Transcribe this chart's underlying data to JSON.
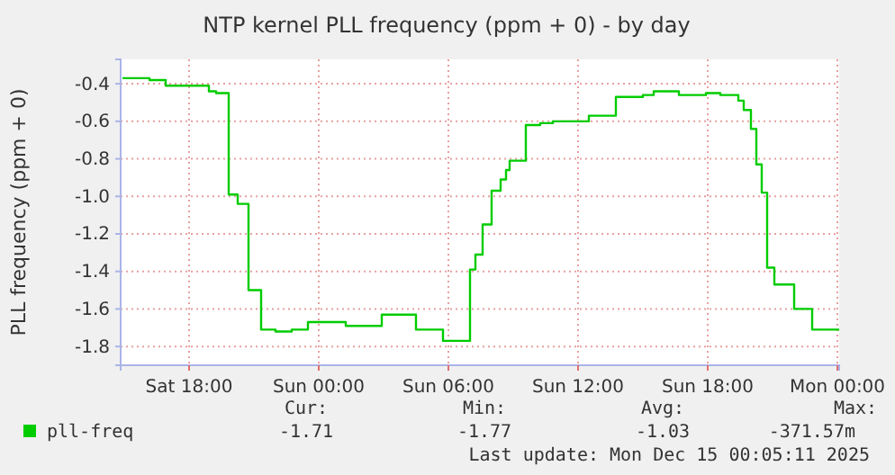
{
  "chart_data": {
    "type": "step",
    "title": "NTP kernel PLL frequency (ppm + 0) - by day",
    "ylabel": "PLL frequency (ppm + 0)",
    "x": [
      "2025-12-13T14:55",
      "2025-12-13T16:10",
      "2025-12-13T16:55",
      "2025-12-13T18:55",
      "2025-12-13T19:15",
      "2025-12-13T19:50",
      "2025-12-13T20:15",
      "2025-12-13T20:45",
      "2025-12-13T21:20",
      "2025-12-13T22:00",
      "2025-12-13T22:45",
      "2025-12-13T23:30",
      "2025-12-14T01:15",
      "2025-12-14T02:55",
      "2025-12-14T04:30",
      "2025-12-14T05:45",
      "2025-12-14T07:00",
      "2025-12-14T07:15",
      "2025-12-14T07:35",
      "2025-12-14T08:00",
      "2025-12-14T08:25",
      "2025-12-14T08:40",
      "2025-12-14T08:50",
      "2025-12-14T09:35",
      "2025-12-14T10:15",
      "2025-12-14T10:50",
      "2025-12-14T12:30",
      "2025-12-14T13:45",
      "2025-12-14T15:00",
      "2025-12-14T15:30",
      "2025-12-14T16:40",
      "2025-12-14T17:55",
      "2025-12-14T18:35",
      "2025-12-14T19:25",
      "2025-12-14T19:40",
      "2025-12-14T20:00",
      "2025-12-14T20:15",
      "2025-12-14T20:30",
      "2025-12-14T20:45",
      "2025-12-14T21:05",
      "2025-12-14T22:00",
      "2025-12-14T22:50",
      "2025-12-15T00:05"
    ],
    "series": [
      {
        "name": "pll-freq",
        "color": "#00cc00",
        "values": [
          -0.37,
          -0.38,
          -0.41,
          -0.44,
          -0.45,
          -0.99,
          -1.04,
          -1.5,
          -1.71,
          -1.72,
          -1.71,
          -1.67,
          -1.69,
          -1.63,
          -1.71,
          -1.77,
          -1.39,
          -1.31,
          -1.15,
          -0.97,
          -0.91,
          -0.86,
          -0.81,
          -0.62,
          -0.61,
          -0.6,
          -0.57,
          -0.47,
          -0.46,
          -0.44,
          -0.46,
          -0.45,
          -0.46,
          -0.49,
          -0.54,
          -0.64,
          -0.83,
          -0.98,
          -1.38,
          -1.47,
          -1.6,
          -1.71,
          -1.71
        ]
      }
    ],
    "xlim": [
      "2025-12-13T14:50",
      "2025-12-15T00:05"
    ],
    "xticks": [
      {
        "value": "2025-12-13T18:00",
        "label": "Sat 18:00"
      },
      {
        "value": "2025-12-14T00:00",
        "label": "Sun 00:00"
      },
      {
        "value": "2025-12-14T06:00",
        "label": "Sun 06:00"
      },
      {
        "value": "2025-12-14T12:00",
        "label": "Sun 12:00"
      },
      {
        "value": "2025-12-14T18:00",
        "label": "Sun 18:00"
      },
      {
        "value": "2025-12-15T00:00",
        "label": "Mon 00:00"
      }
    ],
    "ylim": [
      -1.9,
      -0.27
    ],
    "yticks": [
      -1.8,
      -1.6,
      -1.4,
      -1.2,
      {
        "value": -1.0,
        "label": "-1.0"
      },
      -0.8,
      -0.6,
      -0.4
    ],
    "grid": true,
    "legend": "bottom",
    "annotations": [
      "Cur:",
      "-1.71",
      "Min:",
      "-1.77",
      "Avg:",
      "-1.03",
      "Max:",
      "-371.57m",
      "Last update: Mon Dec 15 00:05:11 2025"
    ]
  }
}
